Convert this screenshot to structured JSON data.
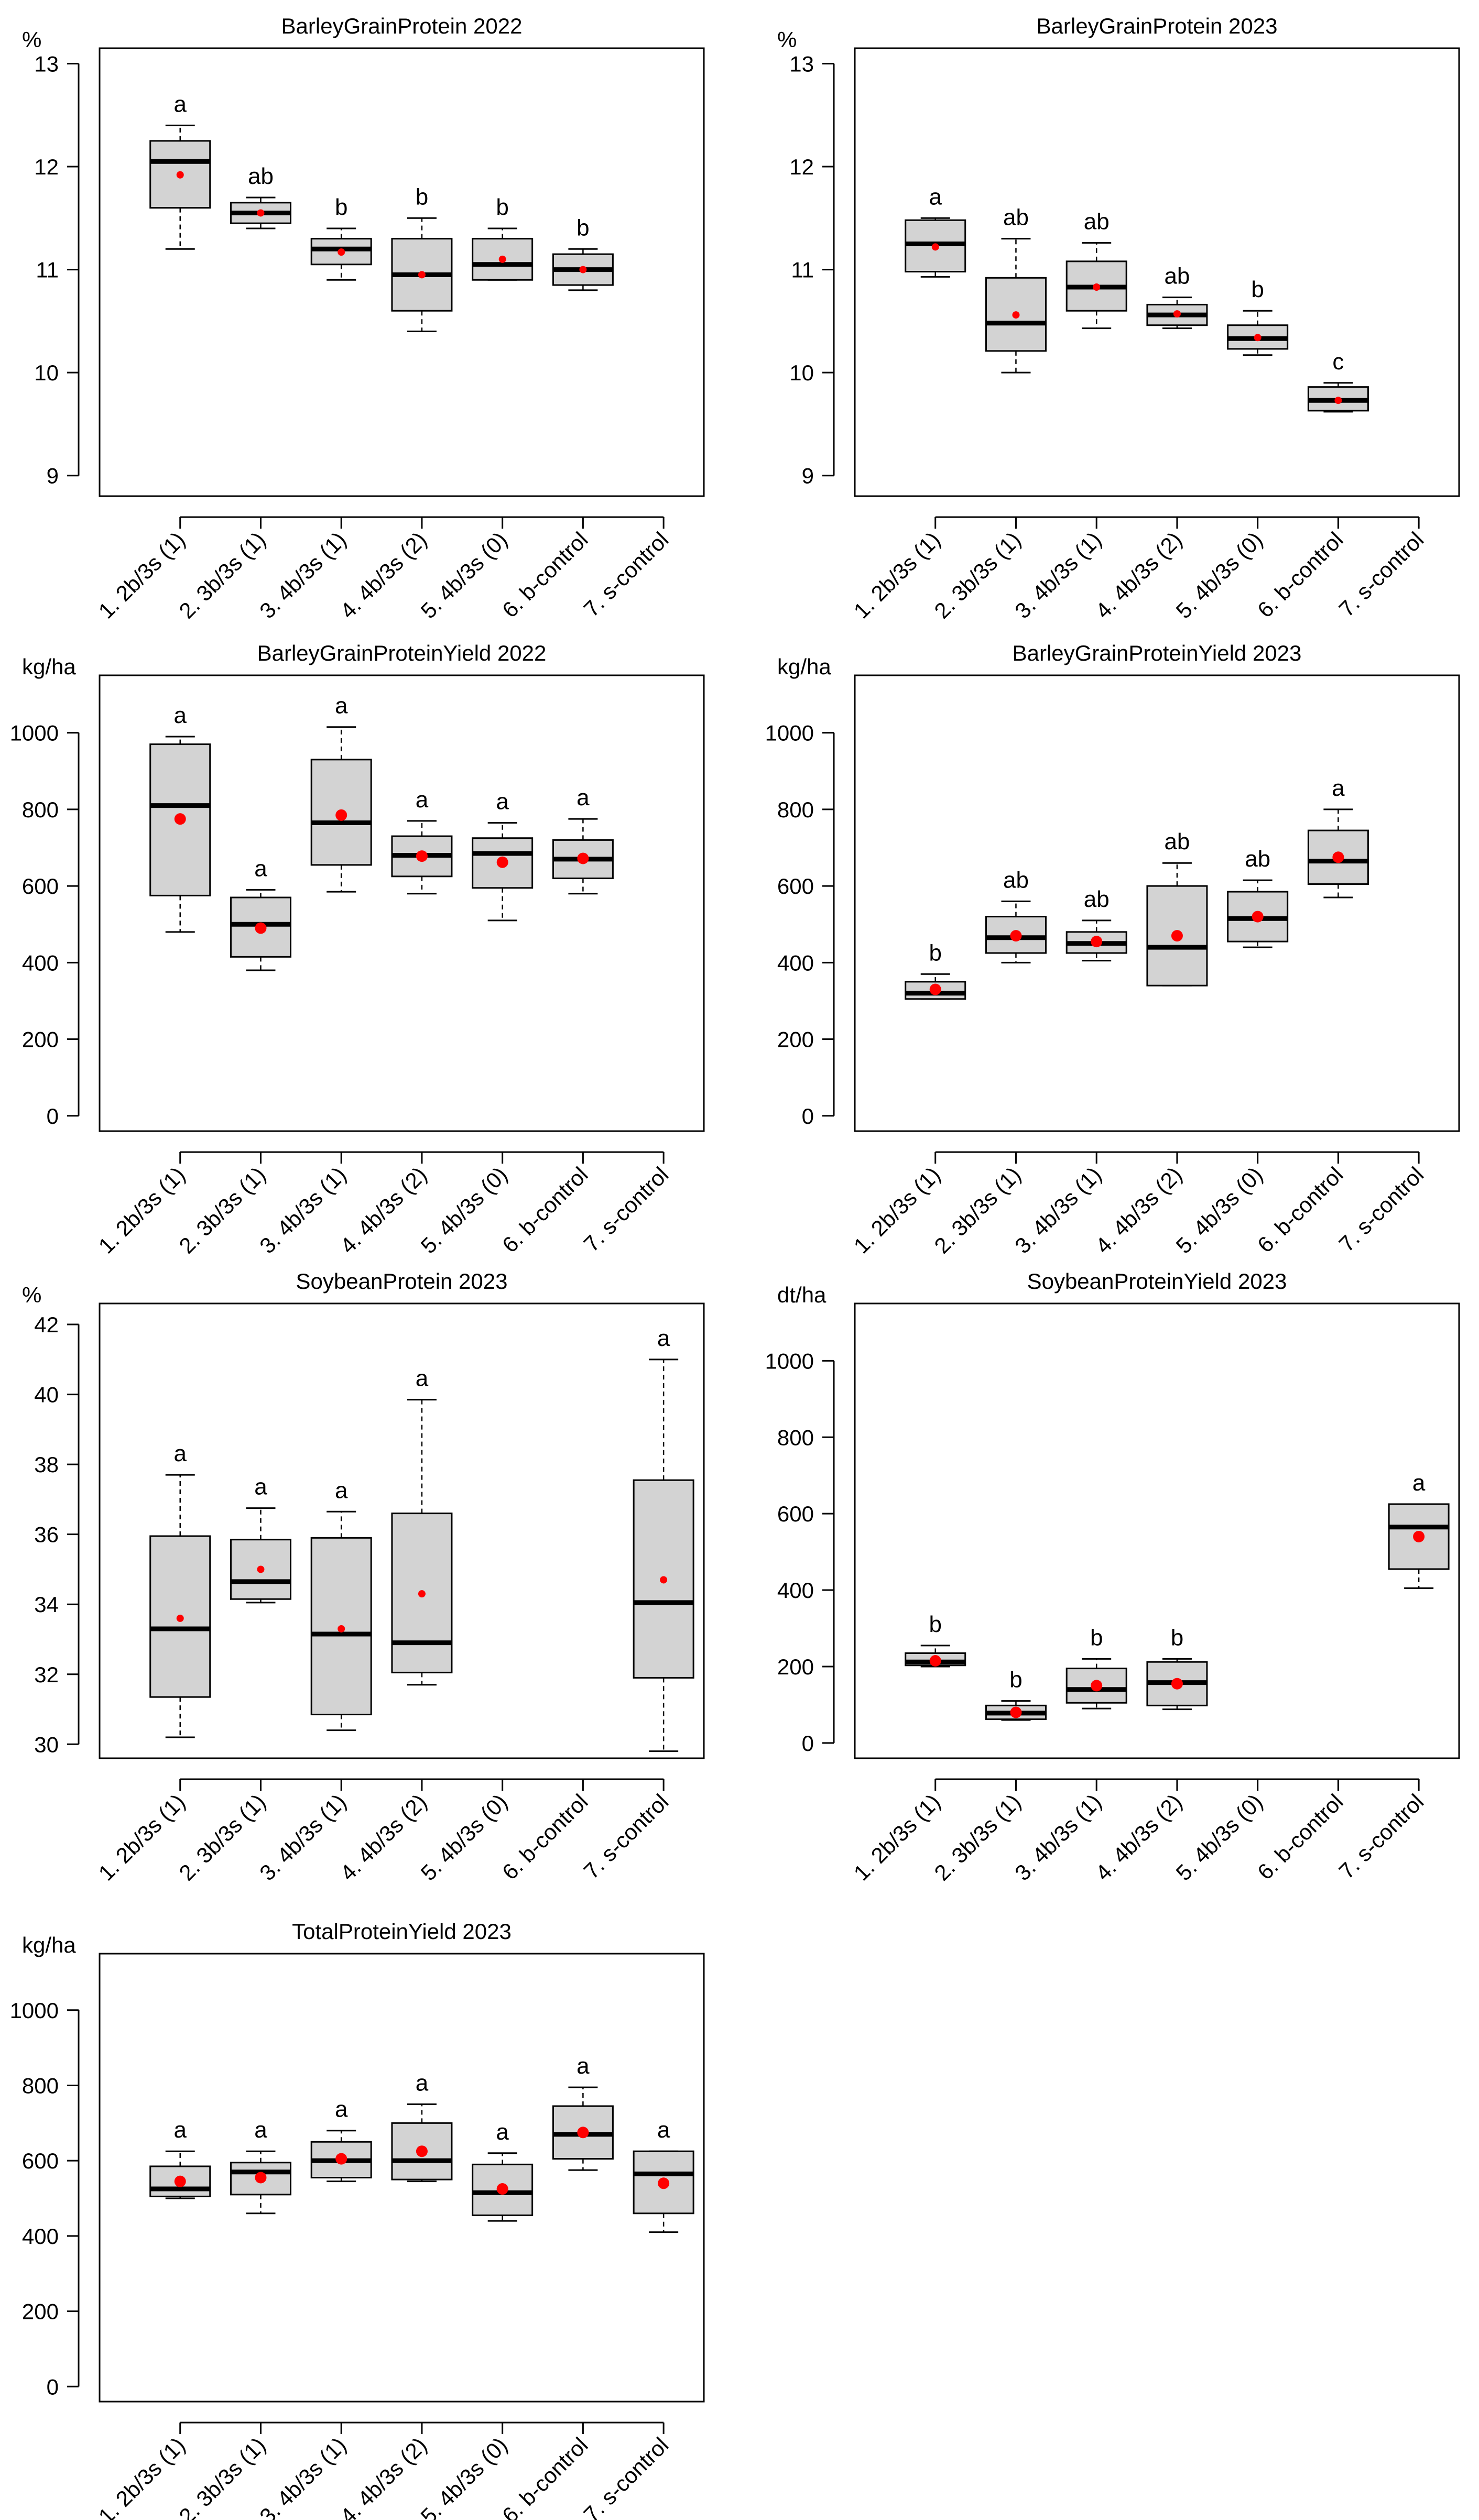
{
  "colors": {
    "box_fill": "#d3d3d3",
    "mean_point": "#ff0000",
    "ink": "#000000",
    "background": "#ffffff"
  },
  "categories": [
    "1. 2b/3s (1)",
    "2. 3b/3s (1)",
    "3. 4b/3s (1)",
    "4. 4b/3s (2)",
    "5. 4b/3s (0)",
    "6. b-control",
    "7. s-control"
  ],
  "chart_data": [
    {
      "type": "box",
      "title": "BarleyGrainProtein 2022",
      "ylabel": "%",
      "ylim": [
        8.8,
        13.15
      ],
      "yticks": [
        9,
        10,
        11,
        12,
        13
      ],
      "mean_size": "small",
      "boxes": [
        {
          "cat": 0,
          "min": 11.2,
          "q1": 11.6,
          "median": 12.05,
          "q3": 12.25,
          "max": 12.4,
          "mean": 11.92,
          "letter": "a"
        },
        {
          "cat": 1,
          "min": 11.4,
          "q1": 11.45,
          "median": 11.55,
          "q3": 11.65,
          "max": 11.7,
          "mean": 11.55,
          "letter": "ab"
        },
        {
          "cat": 2,
          "min": 10.9,
          "q1": 11.05,
          "median": 11.2,
          "q3": 11.3,
          "max": 11.4,
          "mean": 11.17,
          "letter": "b"
        },
        {
          "cat": 3,
          "min": 10.4,
          "q1": 10.6,
          "median": 10.95,
          "q3": 11.3,
          "max": 11.5,
          "mean": 10.95,
          "letter": "b"
        },
        {
          "cat": 4,
          "min": 10.9,
          "q1": 10.9,
          "median": 11.05,
          "q3": 11.3,
          "max": 11.4,
          "mean": 11.1,
          "letter": "b"
        },
        {
          "cat": 5,
          "min": 10.8,
          "q1": 10.85,
          "median": 11.0,
          "q3": 11.15,
          "max": 11.2,
          "mean": 11.0,
          "letter": "b"
        }
      ]
    },
    {
      "type": "box",
      "title": "BarleyGrainProtein 2023",
      "ylabel": "%",
      "ylim": [
        8.8,
        13.15
      ],
      "yticks": [
        9,
        10,
        11,
        12,
        13
      ],
      "mean_size": "small",
      "boxes": [
        {
          "cat": 0,
          "min": 10.93,
          "q1": 10.98,
          "median": 11.25,
          "q3": 11.48,
          "max": 11.5,
          "mean": 11.22,
          "letter": "a"
        },
        {
          "cat": 1,
          "min": 10.0,
          "q1": 10.21,
          "median": 10.48,
          "q3": 10.92,
          "max": 11.3,
          "mean": 10.56,
          "letter": "ab"
        },
        {
          "cat": 2,
          "min": 10.43,
          "q1": 10.6,
          "median": 10.83,
          "q3": 11.08,
          "max": 11.26,
          "mean": 10.83,
          "letter": "ab"
        },
        {
          "cat": 3,
          "min": 10.43,
          "q1": 10.46,
          "median": 10.56,
          "q3": 10.66,
          "max": 10.73,
          "mean": 10.57,
          "letter": "ab"
        },
        {
          "cat": 4,
          "min": 10.17,
          "q1": 10.23,
          "median": 10.33,
          "q3": 10.46,
          "max": 10.6,
          "mean": 10.34,
          "letter": "b"
        },
        {
          "cat": 5,
          "min": 9.62,
          "q1": 9.63,
          "median": 9.73,
          "q3": 9.86,
          "max": 9.9,
          "mean": 9.73,
          "letter": "c"
        }
      ]
    },
    {
      "type": "box",
      "title": "BarleyGrainProteinYield 2022",
      "ylabel": "kg/ha",
      "ylim": [
        -40,
        1150
      ],
      "yticks": [
        0,
        200,
        400,
        600,
        800,
        1000
      ],
      "mean_size": "large",
      "boxes": [
        {
          "cat": 0,
          "min": 480,
          "q1": 575,
          "median": 810,
          "q3": 970,
          "max": 990,
          "mean": 775,
          "letter": "a"
        },
        {
          "cat": 1,
          "min": 380,
          "q1": 415,
          "median": 500,
          "q3": 570,
          "max": 590,
          "mean": 490,
          "letter": "a"
        },
        {
          "cat": 2,
          "min": 585,
          "q1": 655,
          "median": 765,
          "q3": 930,
          "max": 1015,
          "mean": 785,
          "letter": "a"
        },
        {
          "cat": 3,
          "min": 580,
          "q1": 625,
          "median": 680,
          "q3": 730,
          "max": 770,
          "mean": 678,
          "letter": "a"
        },
        {
          "cat": 4,
          "min": 510,
          "q1": 595,
          "median": 685,
          "q3": 725,
          "max": 765,
          "mean": 662,
          "letter": "a"
        },
        {
          "cat": 5,
          "min": 580,
          "q1": 620,
          "median": 670,
          "q3": 720,
          "max": 775,
          "mean": 672,
          "letter": "a"
        }
      ]
    },
    {
      "type": "box",
      "title": "BarleyGrainProteinYield 2023",
      "ylabel": "kg/ha",
      "ylim": [
        -40,
        1150
      ],
      "yticks": [
        0,
        200,
        400,
        600,
        800,
        1000
      ],
      "mean_size": "large",
      "boxes": [
        {
          "cat": 0,
          "min": 305,
          "q1": 305,
          "median": 320,
          "q3": 350,
          "max": 370,
          "mean": 330,
          "letter": "b"
        },
        {
          "cat": 1,
          "min": 400,
          "q1": 425,
          "median": 465,
          "q3": 520,
          "max": 560,
          "mean": 470,
          "letter": "ab"
        },
        {
          "cat": 2,
          "min": 405,
          "q1": 425,
          "median": 450,
          "q3": 480,
          "max": 510,
          "mean": 455,
          "letter": "ab"
        },
        {
          "cat": 3,
          "min": 340,
          "q1": 340,
          "median": 440,
          "q3": 600,
          "max": 660,
          "mean": 470,
          "letter": "ab"
        },
        {
          "cat": 4,
          "min": 440,
          "q1": 455,
          "median": 515,
          "q3": 585,
          "max": 615,
          "mean": 520,
          "letter": "ab"
        },
        {
          "cat": 5,
          "min": 570,
          "q1": 605,
          "median": 665,
          "q3": 745,
          "max": 800,
          "mean": 675,
          "letter": "a"
        }
      ]
    },
    {
      "type": "box",
      "title": "SoybeanProtein 2023",
      "ylabel": "%",
      "ylim": [
        29.6,
        42.6
      ],
      "yticks": [
        30,
        32,
        34,
        36,
        38,
        40,
        42
      ],
      "mean_size": "small",
      "boxes": [
        {
          "cat": 0,
          "min": 30.2,
          "q1": 31.35,
          "median": 33.3,
          "q3": 35.95,
          "max": 37.7,
          "mean": 33.6,
          "letter": "a"
        },
        {
          "cat": 1,
          "min": 34.05,
          "q1": 34.15,
          "median": 34.65,
          "q3": 35.85,
          "max": 36.75,
          "mean": 35.0,
          "letter": "a"
        },
        {
          "cat": 2,
          "min": 30.4,
          "q1": 30.85,
          "median": 33.15,
          "q3": 35.9,
          "max": 36.65,
          "mean": 33.3,
          "letter": "a"
        },
        {
          "cat": 3,
          "min": 31.7,
          "q1": 32.05,
          "median": 32.9,
          "q3": 36.6,
          "max": 39.85,
          "mean": 34.3,
          "letter": "a"
        },
        {
          "cat": 6,
          "min": 29.8,
          "q1": 31.9,
          "median": 34.05,
          "q3": 37.55,
          "max": 41.0,
          "mean": 34.7,
          "letter": "a"
        }
      ]
    },
    {
      "type": "box",
      "title": "SoybeanProteinYield 2023",
      "ylabel": "dt/ha",
      "ylim": [
        -40,
        1150
      ],
      "yticks": [
        0,
        200,
        400,
        600,
        800,
        1000
      ],
      "mean_size": "large",
      "boxes": [
        {
          "cat": 0,
          "min": 200,
          "q1": 203,
          "median": 212,
          "q3": 235,
          "max": 255,
          "mean": 215,
          "letter": "b"
        },
        {
          "cat": 1,
          "min": 60,
          "q1": 62,
          "median": 78,
          "q3": 98,
          "max": 110,
          "mean": 80,
          "letter": "b"
        },
        {
          "cat": 2,
          "min": 90,
          "q1": 105,
          "median": 140,
          "q3": 195,
          "max": 220,
          "mean": 150,
          "letter": "b"
        },
        {
          "cat": 3,
          "min": 88,
          "q1": 98,
          "median": 158,
          "q3": 212,
          "max": 220,
          "mean": 155,
          "letter": "b"
        },
        {
          "cat": 6,
          "min": 405,
          "q1": 455,
          "median": 565,
          "q3": 625,
          "max": 625,
          "mean": 540,
          "letter": "a"
        }
      ]
    },
    {
      "type": "box",
      "title": "TotalProteinYield 2023",
      "ylabel": "kg/ha",
      "ylim": [
        -40,
        1150
      ],
      "yticks": [
        0,
        200,
        400,
        600,
        800,
        1000
      ],
      "mean_size": "large",
      "boxes": [
        {
          "cat": 0,
          "min": 500,
          "q1": 505,
          "median": 525,
          "q3": 585,
          "max": 625,
          "mean": 545,
          "letter": "a"
        },
        {
          "cat": 1,
          "min": 460,
          "q1": 510,
          "median": 570,
          "q3": 595,
          "max": 625,
          "mean": 555,
          "letter": "a"
        },
        {
          "cat": 2,
          "min": 545,
          "q1": 555,
          "median": 600,
          "q3": 650,
          "max": 680,
          "mean": 605,
          "letter": "a"
        },
        {
          "cat": 3,
          "min": 545,
          "q1": 550,
          "median": 600,
          "q3": 700,
          "max": 750,
          "mean": 625,
          "letter": "a"
        },
        {
          "cat": 4,
          "min": 440,
          "q1": 455,
          "median": 515,
          "q3": 590,
          "max": 620,
          "mean": 525,
          "letter": "a"
        },
        {
          "cat": 5,
          "min": 575,
          "q1": 605,
          "median": 670,
          "q3": 745,
          "max": 795,
          "mean": 675,
          "letter": "a"
        },
        {
          "cat": 6,
          "min": 410,
          "q1": 460,
          "median": 565,
          "q3": 625,
          "max": 625,
          "mean": 540,
          "letter": "a"
        }
      ]
    }
  ]
}
